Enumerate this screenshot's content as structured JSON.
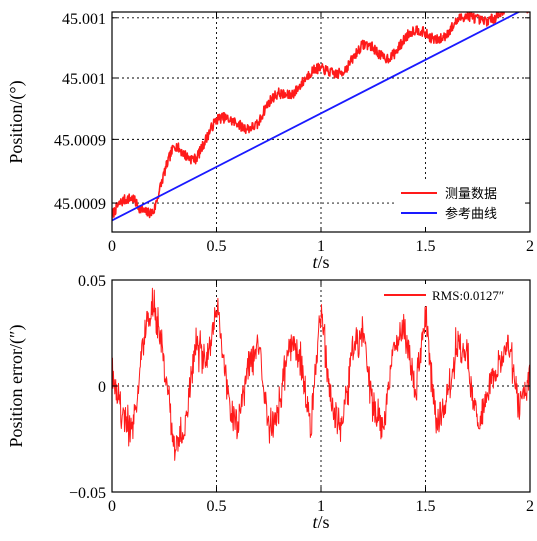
{
  "chart_data": [
    {
      "type": "line",
      "xlabel_italic": "t",
      "xlabel_unit": "/s",
      "ylabel": "Position/(°)",
      "xlim": [
        0,
        2
      ],
      "ylim": [
        45.00085,
        45.00104
      ],
      "grid": true,
      "legend_placement": "bottom-right",
      "x_ticks": [
        0,
        0.5,
        1,
        1.5,
        2
      ],
      "x_tick_labels": [
        "0",
        "0.5",
        "1",
        "1.5",
        "2"
      ],
      "y_ticks": [
        45.000875,
        45.00093,
        45.000983,
        45.001035
      ],
      "y_tick_labels": [
        "45.0009",
        "45.0009",
        "45.001",
        "45.001"
      ],
      "series": [
        {
          "name": "测量数据",
          "color": "#ff1a1a",
          "style": "noisy-oscillation",
          "x": [
            0,
            0.1,
            0.2,
            0.3,
            0.4,
            0.5,
            0.6,
            0.7,
            0.8,
            0.9,
            1.0,
            1.1,
            1.2,
            1.3,
            1.4,
            1.5,
            1.6,
            1.7,
            1.8,
            1.9,
            2.0
          ],
          "values": [
            45.00086,
            45.00088,
            45.00087,
            45.00092,
            45.00092,
            45.00094,
            45.00095,
            45.00094,
            45.00097,
            45.00098,
            45.000985,
            45.000995,
            45.001005,
            45.001005,
            45.001015,
            45.00102,
            45.001025,
            45.00103,
            45.00104,
            45.00104,
            45.001045
          ]
        },
        {
          "name": "参考曲线",
          "color": "#1a1aff",
          "style": "straight",
          "x": [
            0,
            2
          ],
          "values": [
            45.00086,
            45.001045
          ]
        }
      ]
    },
    {
      "type": "line",
      "xlabel_italic": "t",
      "xlabel_unit": "/s",
      "ylabel": "Position error/(″)",
      "xlim": [
        0,
        2
      ],
      "ylim": [
        -0.05,
        0.05
      ],
      "grid": true,
      "legend_placement": "top-right",
      "x_ticks": [
        0,
        0.5,
        1,
        1.5,
        2
      ],
      "x_tick_labels": [
        "0",
        "0.5",
        "1",
        "1.5",
        "2"
      ],
      "y_ticks": [
        -0.05,
        0,
        0.05
      ],
      "y_tick_labels": [
        "−0.05",
        "0",
        "0.05"
      ],
      "series": [
        {
          "name": "RMS:0.0127″",
          "color": "#ff1a1a",
          "style": "noisy-oscillation",
          "x": [
            0,
            0.05,
            0.1,
            0.15,
            0.2,
            0.25,
            0.3,
            0.35,
            0.4,
            0.45,
            0.5,
            0.55,
            0.6,
            0.65,
            0.7,
            0.75,
            0.8,
            0.85,
            0.9,
            0.95,
            1.0,
            1.05,
            1.1,
            1.15,
            1.2,
            1.25,
            1.3,
            1.35,
            1.4,
            1.45,
            1.5,
            1.55,
            1.6,
            1.65,
            1.7,
            1.75,
            1.8,
            1.85,
            1.9,
            1.95,
            2.0
          ],
          "values": [
            0.01,
            -0.015,
            -0.02,
            0.02,
            0.04,
            0.01,
            -0.03,
            -0.02,
            0.02,
            0.01,
            0.04,
            0.0,
            -0.02,
            0.01,
            0.02,
            -0.02,
            -0.01,
            0.02,
            0.015,
            -0.02,
            0.035,
            -0.01,
            -0.02,
            0.015,
            0.025,
            -0.01,
            -0.02,
            0.02,
            0.03,
            -0.005,
            0.035,
            -0.02,
            -0.01,
            0.02,
            0.015,
            -0.02,
            0.0,
            0.01,
            0.02,
            -0.01,
            0.005
          ]
        }
      ]
    }
  ]
}
